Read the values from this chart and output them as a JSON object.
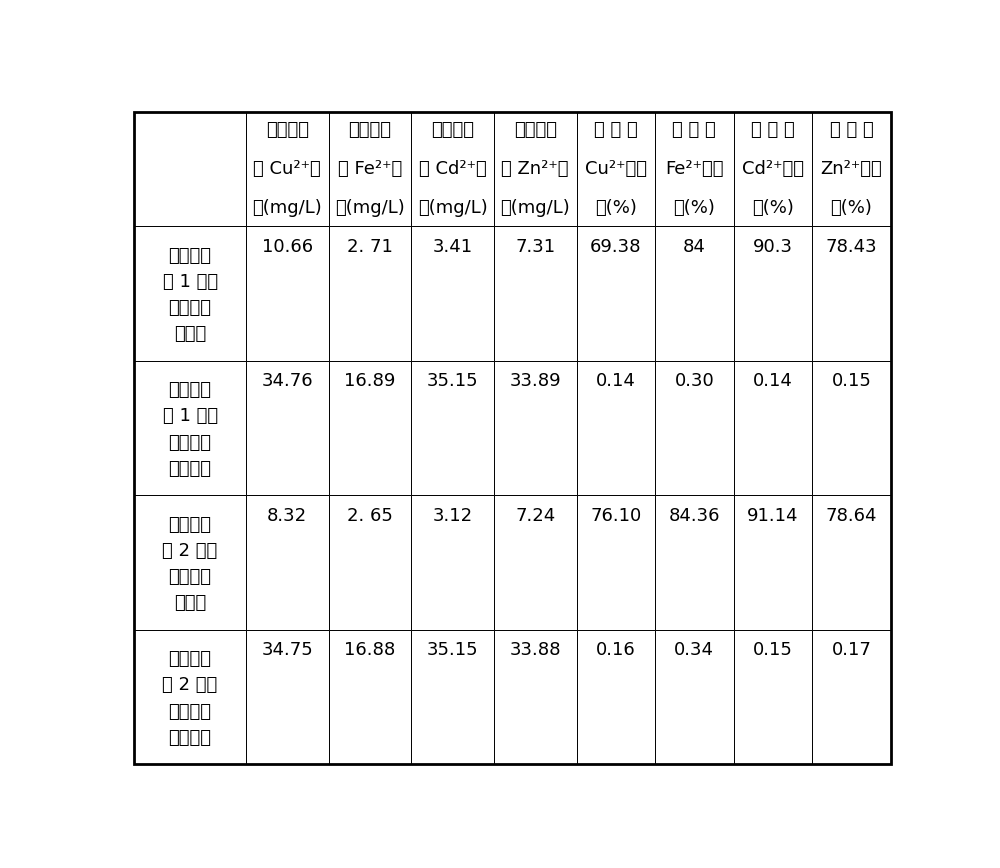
{
  "col_headers_line1": [
    "",
    "溶液中残",
    "溶液中残",
    "溶液中残",
    "溶液中残",
    "溶 液 中",
    "溶 液 中",
    "溶 液 中",
    "溶 液 中"
  ],
  "col_headers_line2": [
    "",
    "余 Cu²⁺浓",
    "余 Fe²⁺浓",
    "余 Cd²⁺浓",
    "余 Zn²⁺浓",
    "Cu²⁺去除",
    "Fe²⁺去除",
    "Cd²⁺去除",
    "Zn²⁺去除"
  ],
  "col_headers_line3": [
    "",
    "度(mg/L)",
    "度(mg/L)",
    "度(mg/L)",
    "度(mg/L)",
    "率(%)",
    "率(%)",
    "率(%)",
    "率(%)"
  ],
  "rows": [
    {
      "label_lines": [
        "对比实验",
        "组 1 中加",
        "入吸附剂",
        "的溶液"
      ],
      "values": [
        "10.66",
        "2. 71",
        "3.41",
        "7.31",
        "69.38",
        "84",
        "90.3",
        "78.43"
      ]
    },
    {
      "label_lines": [
        "对比实验",
        "组 1 中未",
        "加入吸附",
        "剂的溶液"
      ],
      "values": [
        "34.76",
        "16.89",
        "35.15",
        "33.89",
        "0.14",
        "0.30",
        "0.14",
        "0.15"
      ]
    },
    {
      "label_lines": [
        "对比实验",
        "组 2 中加",
        "入吸附剂",
        "的溶液"
      ],
      "values": [
        "8.32",
        "2. 65",
        "3.12",
        "7.24",
        "76.10",
        "84.36",
        "91.14",
        "78.64"
      ]
    },
    {
      "label_lines": [
        "对比实验",
        "组 2 中未",
        "加入吸附",
        "剂的溶液"
      ],
      "values": [
        "34.75",
        "16.88",
        "35.15",
        "33.88",
        "0.16",
        "0.34",
        "0.15",
        "0.17"
      ]
    }
  ],
  "col_widths_ratio": [
    1.35,
    1.0,
    1.0,
    1.0,
    1.0,
    0.95,
    0.95,
    0.95,
    0.95
  ],
  "background_color": "#ffffff",
  "border_color": "#000000",
  "text_color": "#000000",
  "font_size": 13,
  "header_font_size": 13
}
